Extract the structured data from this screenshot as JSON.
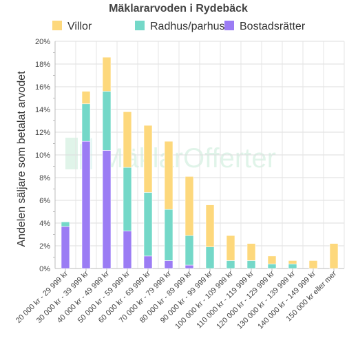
{
  "chart_data": {
    "type": "bar",
    "stacked": true,
    "title": "Mäklararvoden i Rydebäck",
    "xlabel": "",
    "ylabel": "Andelen säljare som betalat arvodet",
    "ylim": [
      0,
      20
    ],
    "yticks": [
      "0%",
      "2%",
      "4%",
      "6%",
      "8%",
      "10%",
      "12%",
      "14%",
      "16%",
      "18%",
      "20%"
    ],
    "grid": true,
    "legend": "top",
    "watermark": "MäklarOfferter",
    "categories": [
      "20 000 kr - 29 999 kr",
      "30 000 kr - 39 999 kr",
      "40 000 kr - 49 999 kr",
      "50 000 kr - 59 999 kr",
      "60 000 kr - 69 999 kr",
      "70 000 kr - 79 999 kr",
      "80 000 kr - 89 999 kr",
      "90 000 kr - 99 999 kr",
      "100 000 kr - 109 999 kr",
      "110 000 kr - 119 999 kr",
      "120 000 kr - 129 999 kr",
      "130 000 kr - 139 999 kr",
      "140 000 kr - 149 999 kr",
      "150 000 kr eller mer"
    ],
    "series": [
      {
        "name": "Bostadsrätter",
        "color": "#9b7cf4",
        "values": [
          3.7,
          11.2,
          10.4,
          3.3,
          1.1,
          0.7,
          0.3,
          0,
          0,
          0,
          0,
          0,
          0,
          0
        ]
      },
      {
        "name": "Radhus/parhus",
        "color": "#74d8c8",
        "values": [
          0.4,
          3.3,
          5.2,
          5.6,
          5.6,
          4.5,
          2.6,
          1.9,
          0.7,
          0.7,
          0.4,
          0.4,
          0,
          0
        ]
      },
      {
        "name": "Villor",
        "color": "#fdd87c",
        "values": [
          0,
          1.1,
          3.0,
          4.9,
          5.9,
          6.0,
          5.2,
          3.7,
          2.2,
          1.5,
          0.7,
          0.3,
          0.7,
          2.2
        ]
      }
    ],
    "legend_order": [
      "Villor",
      "Radhus/parhus",
      "Bostadsrätter"
    ]
  }
}
